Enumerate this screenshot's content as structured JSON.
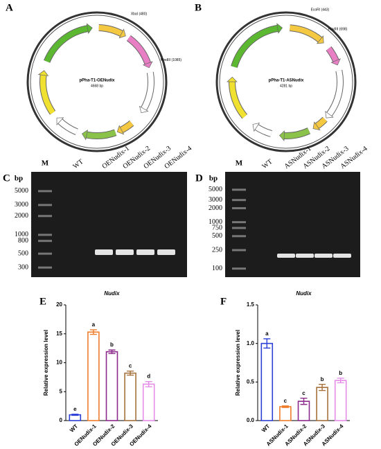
{
  "plasmids": [
    {
      "label": "A",
      "name": "pPha-T1-OENudix",
      "size": "4668 bp",
      "sites": [
        "XbaI (480)",
        "HindIII (1085)"
      ]
    },
    {
      "label": "B",
      "name": "pPha-T1-ASNudix",
      "size": "4281 bp",
      "sites": [
        "EcoRI (443)",
        "HindIII (698)"
      ]
    }
  ],
  "gels": [
    {
      "label": "C",
      "unit": "bp",
      "marker": "M",
      "lanes": [
        "WT",
        "OENudix-1",
        "OENudix-2",
        "OENudix-3",
        "OENudix-4"
      ],
      "ladder": [
        5000,
        3000,
        2000,
        1000,
        800,
        500,
        300
      ]
    },
    {
      "label": "D",
      "unit": "bp",
      "marker": "M",
      "lanes": [
        "WT",
        "ASNudix-1",
        "ASNudix-2",
        "ASNudix-3",
        "ASNudix-4"
      ],
      "ladder": [
        5000,
        3000,
        2000,
        1000,
        750,
        500,
        250,
        100
      ]
    }
  ],
  "chart_data": [
    {
      "type": "bar",
      "panel": "E",
      "title": "Nudix",
      "y_label": "Relative expression level",
      "categories": [
        "WT",
        "OENudix-1",
        "OENudix-2",
        "OENudix-3",
        "OENudix-4"
      ],
      "values": [
        1.0,
        15.3,
        11.9,
        8.2,
        6.3
      ],
      "errors": [
        0.1,
        0.4,
        0.3,
        0.35,
        0.45
      ],
      "letters": [
        "e",
        "a",
        "b",
        "c",
        "d"
      ],
      "colors": [
        "#2a3fd6",
        "#f07c2a",
        "#8b2a8b",
        "#a5703a",
        "#e58be8"
      ],
      "ylim": [
        0,
        20
      ],
      "yticks": [
        0,
        5,
        10,
        15,
        20
      ]
    },
    {
      "type": "bar",
      "panel": "F",
      "title": "Nudix",
      "y_label": "Relative expression level",
      "categories": [
        "WT",
        "ASNudix-1",
        "ASNudix-2",
        "ASNudix-3",
        "ASNudix-4"
      ],
      "values": [
        1.0,
        0.18,
        0.25,
        0.43,
        0.52
      ],
      "errors": [
        0.06,
        0.01,
        0.04,
        0.04,
        0.03
      ],
      "letters": [
        "a",
        "c",
        "c",
        "b",
        "b"
      ],
      "colors": [
        "#2a3fd6",
        "#f07c2a",
        "#8b2a8b",
        "#a5703a",
        "#e58be8"
      ],
      "ylim": [
        0,
        1.5
      ],
      "yticks": [
        {
          "value": 0,
          "label": "0.0"
        },
        0.5,
        {
          "value": 1,
          "label": "1.0"
        },
        1.5
      ]
    }
  ]
}
